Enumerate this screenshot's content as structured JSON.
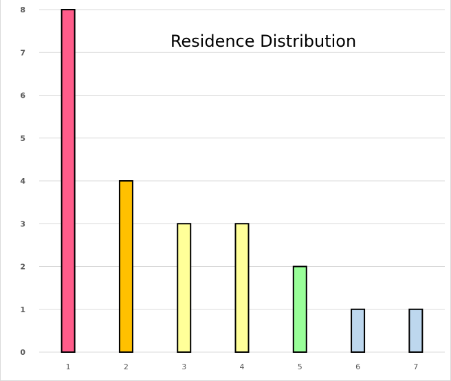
{
  "chart_data": {
    "type": "bar",
    "title": "Residence Distribution",
    "xlabel": "",
    "ylabel": "",
    "categories": [
      "1",
      "2",
      "3",
      "4",
      "5",
      "6",
      "7"
    ],
    "values": [
      8,
      4,
      3,
      3,
      2,
      1,
      1
    ],
    "ylim": [
      0,
      8
    ],
    "yticks": [
      0,
      1,
      2,
      3,
      4,
      5,
      6,
      7,
      8
    ],
    "grid": true,
    "legend": "none",
    "bar_colors": [
      "#ff5c8a",
      "#ffc000",
      "#ffff99",
      "#ffff99",
      "#99ff99",
      "#bdd7ee",
      "#bdd7ee"
    ],
    "grid_color": "#d9d9d9",
    "tick_label_color": "#595959"
  }
}
